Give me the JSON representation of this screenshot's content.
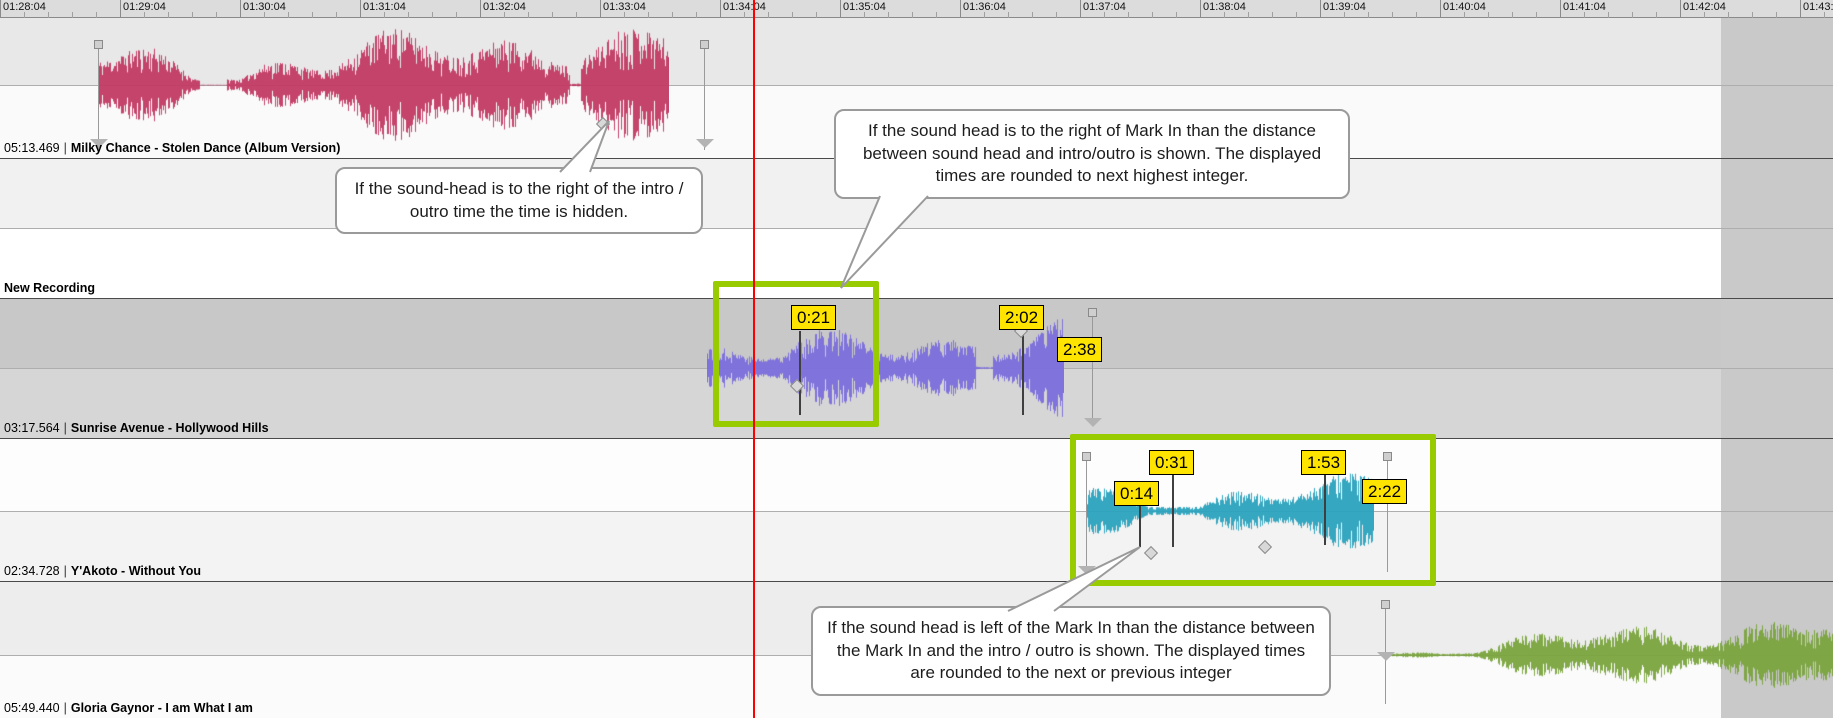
{
  "ui": {
    "colors": {
      "highlight": "#99cc00",
      "marker_bg": "#ffe400",
      "playhead": "#ff0000"
    }
  },
  "ruler": {
    "labels": [
      "01:28:04",
      "01:29:04",
      "01:30:04",
      "01:31:04",
      "01:32:04",
      "01:33:04",
      "01:34:04",
      "01:35:04",
      "01:36:04",
      "01:37:04",
      "01:38:04",
      "01:39:04",
      "01:40:04",
      "01:41:04",
      "01:42:04",
      "01:43:04"
    ]
  },
  "tracks": [
    {
      "time": "05:13.469",
      "sep": "|",
      "title": "Milky Chance - Stolen Dance (Album Version)",
      "color": "#c23a64",
      "markers": []
    },
    {
      "time": "",
      "sep": "",
      "title": "New Recording",
      "color": "",
      "markers": []
    },
    {
      "time": "03:17.564",
      "sep": "|",
      "title": "Sunrise Avenue - Hollywood Hills",
      "color": "#7b6edc",
      "markers": [
        "0:21",
        "2:02",
        "2:38"
      ]
    },
    {
      "time": "02:34.728",
      "sep": "|",
      "title": "Y'Akoto - Without You",
      "color": "#2aa2bd",
      "markers": [
        "0:31",
        "1:53",
        "0:14",
        "2:22"
      ]
    },
    {
      "time": "05:49.440",
      "sep": "|",
      "title": "Gloria Gaynor - I am What I am",
      "color": "#7aa43e",
      "markers": []
    }
  ],
  "callouts": [
    {
      "text": "If the sound-head is to the right of the intro / outro time the time is hidden."
    },
    {
      "text": "If the sound head is to the right of Mark In than the distance between sound head and intro/outro is shown. The displayed times are rounded to next highest integer."
    },
    {
      "text": "If the sound head is left of the Mark In than the distance between the Mark In and the intro / outro is shown. The displayed times are rounded to the next or previous integer"
    }
  ]
}
